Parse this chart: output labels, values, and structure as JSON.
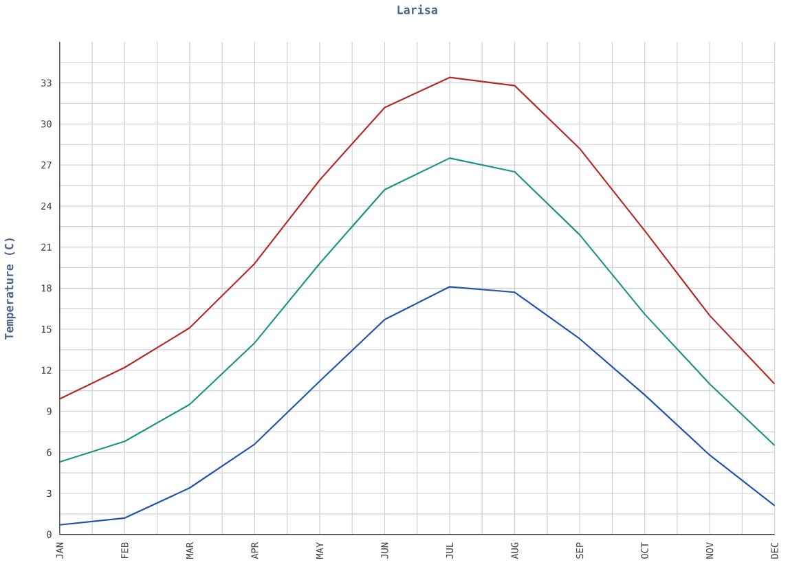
{
  "chart_data": {
    "type": "line",
    "title": "Larisa",
    "ylabel": "Temperature (C)",
    "categories": [
      "JAN",
      "FEB",
      "MAR",
      "APR",
      "MAY",
      "JUN",
      "JUL",
      "AUG",
      "SEP",
      "OCT",
      "NOV",
      "DEC"
    ],
    "series": [
      {
        "color": "#b52a24",
        "values": [
          9.9,
          12.2,
          15.1,
          19.8,
          25.9,
          31.2,
          33.4,
          32.8,
          28.2,
          22.2,
          16.0,
          11.0
        ]
      },
      {
        "color": "#1a9484",
        "values": [
          5.3,
          6.8,
          9.5,
          14.0,
          19.8,
          25.2,
          27.5,
          26.5,
          21.9,
          16.1,
          11.0,
          6.5
        ]
      },
      {
        "color": "#2352ad",
        "values": [
          0.7,
          1.2,
          3.4,
          6.6,
          11.2,
          15.7,
          18.1,
          17.7,
          14.3,
          10.2,
          5.8,
          2.1
        ]
      }
    ],
    "ylim": [
      0,
      36
    ],
    "yticks": [
      0,
      {
        "value": 1.5,
        "label": null
      },
      3,
      {
        "value": 4.5,
        "label": null
      },
      6,
      {
        "value": 7.5,
        "label": null
      },
      9,
      {
        "value": 10.5,
        "label": null
      },
      12,
      {
        "value": 13.5,
        "label": null
      },
      15,
      {
        "value": 16.5,
        "label": null
      },
      18,
      {
        "value": 19.5,
        "label": null
      },
      21,
      {
        "value": 22.5,
        "label": null
      },
      24,
      {
        "value": 25.5,
        "label": null
      },
      27,
      {
        "value": 28.5,
        "label": null
      },
      30,
      {
        "value": 31.5,
        "label": null
      },
      33,
      {
        "value": 34.5,
        "label": null
      }
    ],
    "grid": true,
    "marker": "none",
    "line_style": "solid"
  }
}
